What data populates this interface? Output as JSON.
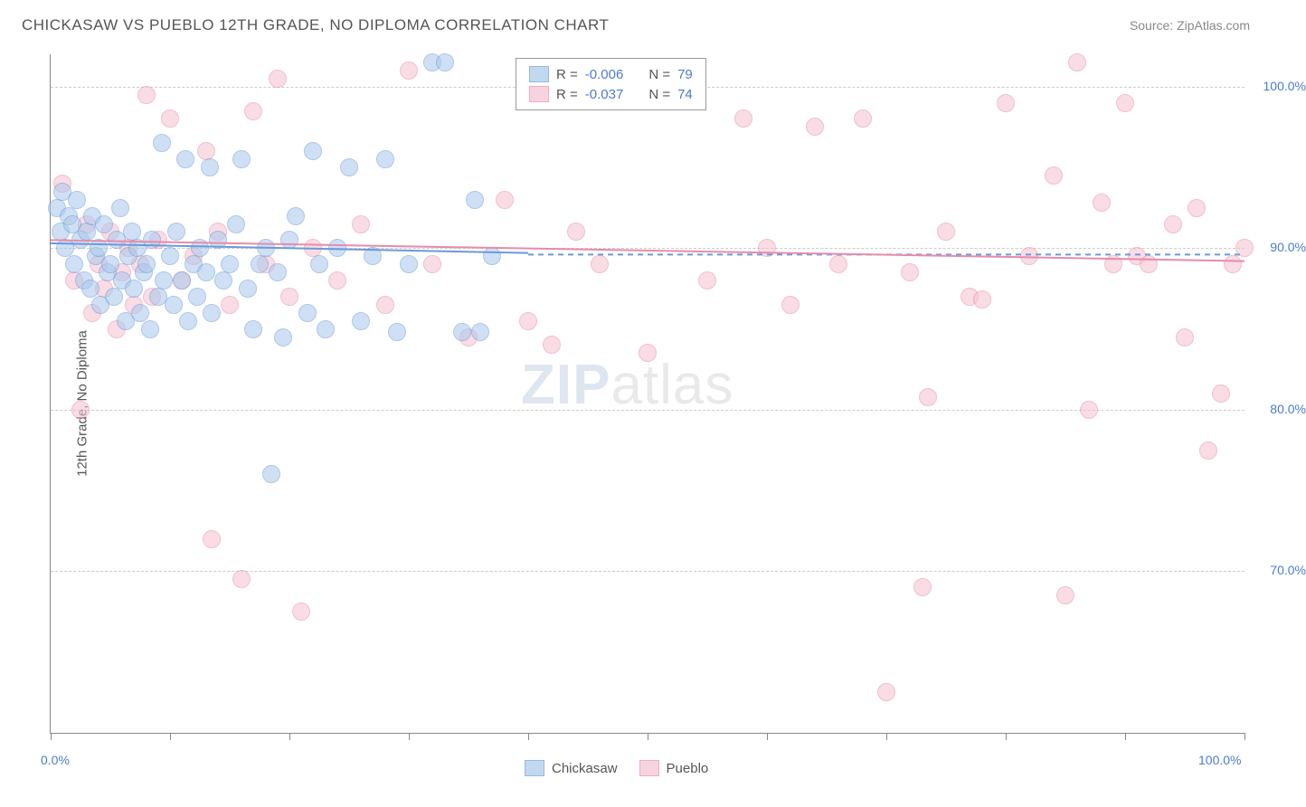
{
  "title": "CHICKASAW VS PUEBLO 12TH GRADE, NO DIPLOMA CORRELATION CHART",
  "source_label": "Source: ZipAtlas.com",
  "y_axis_label": "12th Grade, No Diploma",
  "watermark_zip": "ZIP",
  "watermark_atlas": "atlas",
  "chart": {
    "type": "scatter",
    "xlim": [
      0,
      100
    ],
    "ylim": [
      60,
      102
    ],
    "x_ticks": [
      0,
      10,
      20,
      30,
      40,
      50,
      60,
      70,
      80,
      90,
      100
    ],
    "y_gridlines": [
      70,
      80,
      90,
      100
    ],
    "x_axis_labels": [
      {
        "value": 0,
        "text": "0.0%"
      },
      {
        "value": 100,
        "text": "100.0%"
      }
    ],
    "y_axis_labels": [
      {
        "value": 70,
        "text": "70.0%"
      },
      {
        "value": 80,
        "text": "80.0%"
      },
      {
        "value": 90,
        "text": "90.0%"
      },
      {
        "value": 100,
        "text": "100.0%"
      }
    ],
    "background_color": "#ffffff",
    "grid_color": "#cccccc",
    "marker_radius": 9,
    "marker_stroke_width": 1,
    "series": {
      "chickasaw": {
        "label": "Chickasaw",
        "fill": "#a9c8ec",
        "stroke": "#6a9bd8",
        "fill_opacity": 0.55,
        "r_value": "-0.006",
        "n_value": "79",
        "trendline": {
          "x1": 0,
          "y1": 90.3,
          "x2": 40,
          "y2": 89.7,
          "dash_x1": 40,
          "dash_x2": 100,
          "dash_y": 89.6
        },
        "points": [
          [
            0.5,
            92.5
          ],
          [
            0.8,
            91.0
          ],
          [
            1.0,
            93.5
          ],
          [
            1.2,
            90.0
          ],
          [
            1.5,
            92.0
          ],
          [
            1.8,
            91.5
          ],
          [
            2.0,
            89.0
          ],
          [
            2.2,
            93.0
          ],
          [
            2.5,
            90.5
          ],
          [
            2.8,
            88.0
          ],
          [
            3.0,
            91.0
          ],
          [
            3.3,
            87.5
          ],
          [
            3.5,
            92.0
          ],
          [
            3.8,
            89.5
          ],
          [
            4.0,
            90.0
          ],
          [
            4.2,
            86.5
          ],
          [
            4.5,
            91.5
          ],
          [
            4.8,
            88.5
          ],
          [
            5.0,
            89.0
          ],
          [
            5.3,
            87.0
          ],
          [
            5.5,
            90.5
          ],
          [
            5.8,
            92.5
          ],
          [
            6.0,
            88.0
          ],
          [
            6.3,
            85.5
          ],
          [
            6.5,
            89.5
          ],
          [
            6.8,
            91.0
          ],
          [
            7.0,
            87.5
          ],
          [
            7.3,
            90.0
          ],
          [
            7.5,
            86.0
          ],
          [
            7.8,
            88.5
          ],
          [
            8.0,
            89.0
          ],
          [
            8.3,
            85.0
          ],
          [
            8.5,
            90.5
          ],
          [
            9.0,
            87.0
          ],
          [
            9.3,
            96.5
          ],
          [
            9.5,
            88.0
          ],
          [
            10.0,
            89.5
          ],
          [
            10.3,
            86.5
          ],
          [
            10.5,
            91.0
          ],
          [
            11.0,
            88.0
          ],
          [
            11.3,
            95.5
          ],
          [
            11.5,
            85.5
          ],
          [
            12.0,
            89.0
          ],
          [
            12.3,
            87.0
          ],
          [
            12.5,
            90.0
          ],
          [
            13.0,
            88.5
          ],
          [
            13.3,
            95.0
          ],
          [
            13.5,
            86.0
          ],
          [
            14.0,
            90.5
          ],
          [
            14.5,
            88.0
          ],
          [
            15.0,
            89.0
          ],
          [
            15.5,
            91.5
          ],
          [
            16.0,
            95.5
          ],
          [
            16.5,
            87.5
          ],
          [
            17.0,
            85.0
          ],
          [
            17.5,
            89.0
          ],
          [
            18.0,
            90.0
          ],
          [
            18.5,
            76.0
          ],
          [
            19.0,
            88.5
          ],
          [
            19.5,
            84.5
          ],
          [
            20.0,
            90.5
          ],
          [
            20.5,
            92.0
          ],
          [
            21.5,
            86.0
          ],
          [
            22.0,
            96.0
          ],
          [
            22.5,
            89.0
          ],
          [
            23.0,
            85.0
          ],
          [
            24.0,
            90.0
          ],
          [
            25.0,
            95.0
          ],
          [
            26.0,
            85.5
          ],
          [
            27.0,
            89.5
          ],
          [
            28.0,
            95.5
          ],
          [
            29.0,
            84.8
          ],
          [
            30.0,
            89.0
          ],
          [
            32.0,
            101.5
          ],
          [
            33.0,
            101.5
          ],
          [
            34.5,
            84.8
          ],
          [
            35.5,
            93.0
          ],
          [
            36.0,
            84.8
          ],
          [
            37.0,
            89.5
          ]
        ]
      },
      "pueblo": {
        "label": "Pueblo",
        "fill": "#f5c1cf",
        "stroke": "#e88bac",
        "fill_opacity": 0.55,
        "r_value": "-0.037",
        "n_value": "74",
        "trendline": {
          "x1": 0,
          "y1": 90.5,
          "x2": 100,
          "y2": 89.2
        },
        "points": [
          [
            1.0,
            94.0
          ],
          [
            2.0,
            88.0
          ],
          [
            2.5,
            80.0
          ],
          [
            3.0,
            91.5
          ],
          [
            3.5,
            86.0
          ],
          [
            4.0,
            89.0
          ],
          [
            4.5,
            87.5
          ],
          [
            5.0,
            91.0
          ],
          [
            5.5,
            85.0
          ],
          [
            6.0,
            88.5
          ],
          [
            6.5,
            90.0
          ],
          [
            7.0,
            86.5
          ],
          [
            7.5,
            89.0
          ],
          [
            8.0,
            99.5
          ],
          [
            8.5,
            87.0
          ],
          [
            9.0,
            90.5
          ],
          [
            10.0,
            98.0
          ],
          [
            11.0,
            88.0
          ],
          [
            12.0,
            89.5
          ],
          [
            13.0,
            96.0
          ],
          [
            13.5,
            72.0
          ],
          [
            14.0,
            91.0
          ],
          [
            15.0,
            86.5
          ],
          [
            16.0,
            69.5
          ],
          [
            17.0,
            98.5
          ],
          [
            18.0,
            89.0
          ],
          [
            19.0,
            100.5
          ],
          [
            20.0,
            87.0
          ],
          [
            21.0,
            67.5
          ],
          [
            22.0,
            90.0
          ],
          [
            24.0,
            88.0
          ],
          [
            26.0,
            91.5
          ],
          [
            28.0,
            86.5
          ],
          [
            30.0,
            101.0
          ],
          [
            32.0,
            89.0
          ],
          [
            35.0,
            84.5
          ],
          [
            38.0,
            93.0
          ],
          [
            40.0,
            85.5
          ],
          [
            42.0,
            84.0
          ],
          [
            44.0,
            91.0
          ],
          [
            46.0,
            89.0
          ],
          [
            50.0,
            83.5
          ],
          [
            55.0,
            88.0
          ],
          [
            58.0,
            98.0
          ],
          [
            60.0,
            90.0
          ],
          [
            62.0,
            86.5
          ],
          [
            64.0,
            97.5
          ],
          [
            66.0,
            89.0
          ],
          [
            68.0,
            98.0
          ],
          [
            70.0,
            62.5
          ],
          [
            72.0,
            88.5
          ],
          [
            73.0,
            69.0
          ],
          [
            73.5,
            80.8
          ],
          [
            75.0,
            91.0
          ],
          [
            77.0,
            87.0
          ],
          [
            78.0,
            86.8
          ],
          [
            80.0,
            99.0
          ],
          [
            82.0,
            89.5
          ],
          [
            84.0,
            94.5
          ],
          [
            85.0,
            68.5
          ],
          [
            86.0,
            101.5
          ],
          [
            87.0,
            80.0
          ],
          [
            88.0,
            92.8
          ],
          [
            89.0,
            89.0
          ],
          [
            90.0,
            99.0
          ],
          [
            91.0,
            89.5
          ],
          [
            92.0,
            89.0
          ],
          [
            94.0,
            91.5
          ],
          [
            95.0,
            84.5
          ],
          [
            96.0,
            92.5
          ],
          [
            97.0,
            77.5
          ],
          [
            98.0,
            81.0
          ],
          [
            99.0,
            89.0
          ],
          [
            100.0,
            90.0
          ]
        ]
      }
    },
    "legend": {
      "r_label": "R =",
      "n_label": "N ="
    }
  }
}
